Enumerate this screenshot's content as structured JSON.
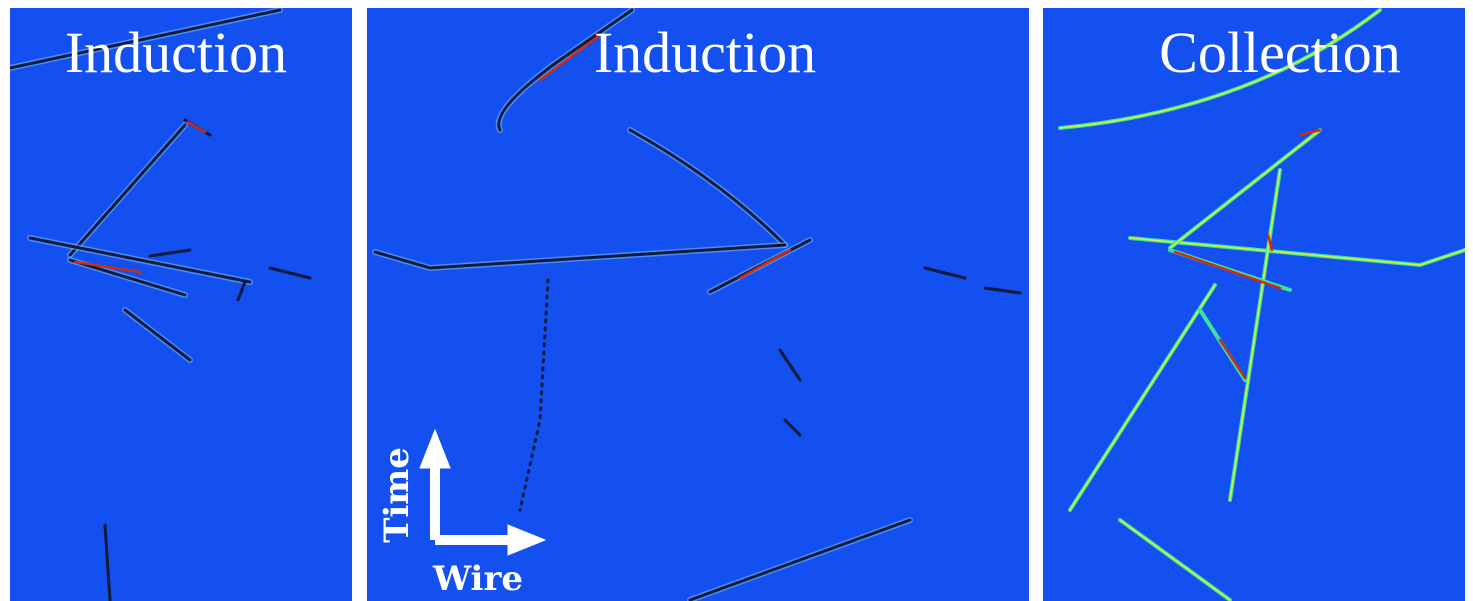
{
  "panels": [
    {
      "label": "Induction"
    },
    {
      "label": "Induction"
    },
    {
      "label": "Collection"
    }
  ],
  "axes": {
    "vertical": "Time",
    "horizontal": "Wire"
  }
}
